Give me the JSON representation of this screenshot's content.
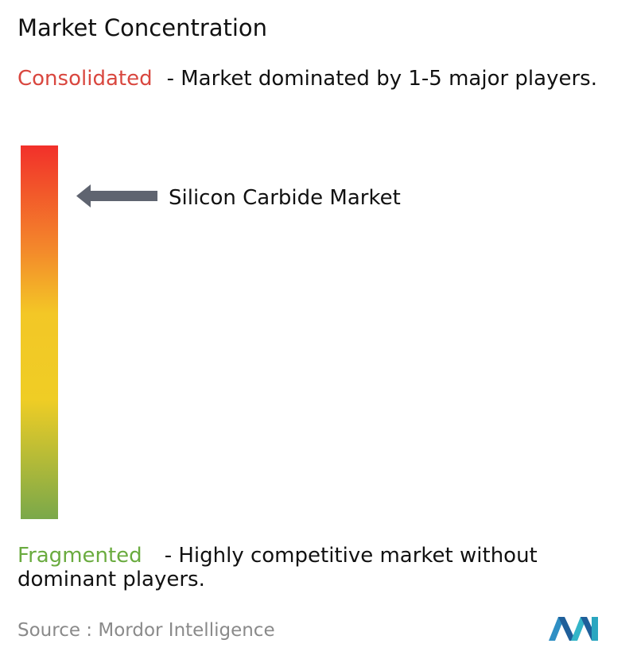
{
  "title": "Market Concentration",
  "consolidated": {
    "label": "Consolidated",
    "description": "- Market dominated by 1-5 major players."
  },
  "fragmented": {
    "label": "Fragmented",
    "description": "- Highly competitive market without dominant players."
  },
  "marker": {
    "label": "Silicon Carbide Market"
  },
  "source": {
    "label": "Source :",
    "name": "Mordor Intelligence"
  }
}
